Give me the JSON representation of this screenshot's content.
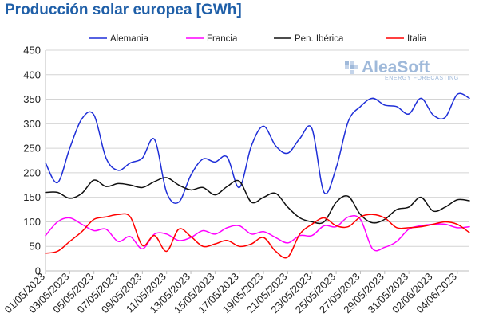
{
  "title": "Producción solar europea [GWh]",
  "logo": {
    "name": "AleaSoft",
    "subtitle": "ENERGY FORECASTING",
    "color": "#9fb9da"
  },
  "chart_data": {
    "type": "line",
    "title": "Producción solar europea [GWh]",
    "xlabel": "",
    "ylabel": "",
    "ylim": [
      0,
      450
    ],
    "yticks": [
      0,
      50,
      100,
      150,
      200,
      250,
      300,
      350,
      400,
      450
    ],
    "grid": true,
    "legend_position": "top",
    "x_tick_labels": [
      "01/05/2023",
      "03/05/2023",
      "05/05/2023",
      "07/05/2023",
      "09/05/2023",
      "11/05/2023",
      "13/05/2023",
      "15/05/2023",
      "17/05/2023",
      "19/05/2023",
      "21/05/2023",
      "23/05/2023",
      "25/05/2023",
      "27/05/2023",
      "29/05/2023",
      "31/05/2023",
      "02/06/2023",
      "04/06/2023"
    ],
    "x": [
      "01/05/2023",
      "02/05/2023",
      "03/05/2023",
      "04/05/2023",
      "05/05/2023",
      "06/05/2023",
      "07/05/2023",
      "08/05/2023",
      "09/05/2023",
      "10/05/2023",
      "11/05/2023",
      "12/05/2023",
      "13/05/2023",
      "14/05/2023",
      "15/05/2023",
      "16/05/2023",
      "17/05/2023",
      "18/05/2023",
      "19/05/2023",
      "20/05/2023",
      "21/05/2023",
      "22/05/2023",
      "23/05/2023",
      "24/05/2023",
      "25/05/2023",
      "26/05/2023",
      "27/05/2023",
      "28/05/2023",
      "29/05/2023",
      "30/05/2023",
      "31/05/2023",
      "01/06/2023",
      "02/06/2023",
      "03/06/2023",
      "04/06/2023",
      "05/06/2023"
    ],
    "series": [
      {
        "name": "Alemania",
        "color": "#1f2fd8",
        "values": [
          220,
          180,
          250,
          310,
          318,
          230,
          205,
          220,
          230,
          268,
          160,
          140,
          195,
          228,
          222,
          232,
          170,
          255,
          295,
          255,
          240,
          270,
          290,
          160,
          210,
          305,
          335,
          352,
          338,
          335,
          320,
          352,
          318,
          313,
          360,
          352
        ]
      },
      {
        "name": "Francia",
        "color": "#ff00ff",
        "values": [
          72,
          100,
          108,
          95,
          82,
          85,
          60,
          70,
          45,
          75,
          75,
          62,
          68,
          82,
          75,
          88,
          92,
          75,
          80,
          68,
          57,
          72,
          72,
          92,
          90,
          110,
          105,
          45,
          48,
          60,
          85,
          92,
          95,
          95,
          88,
          90
        ]
      },
      {
        "name": "Pen. Ibérica",
        "color": "#111111",
        "values": [
          160,
          160,
          148,
          158,
          185,
          172,
          178,
          175,
          170,
          182,
          190,
          175,
          165,
          170,
          155,
          172,
          183,
          140,
          150,
          158,
          130,
          108,
          100,
          100,
          140,
          152,
          115,
          98,
          105,
          125,
          130,
          150,
          122,
          130,
          145,
          143
        ]
      },
      {
        "name": "Italia",
        "color": "#ff0000",
        "values": [
          36,
          40,
          60,
          80,
          105,
          110,
          115,
          110,
          52,
          72,
          40,
          85,
          70,
          50,
          55,
          62,
          50,
          55,
          68,
          40,
          28,
          75,
          95,
          108,
          92,
          90,
          110,
          115,
          108,
          88,
          88,
          90,
          95,
          100,
          95,
          78
        ]
      }
    ]
  }
}
